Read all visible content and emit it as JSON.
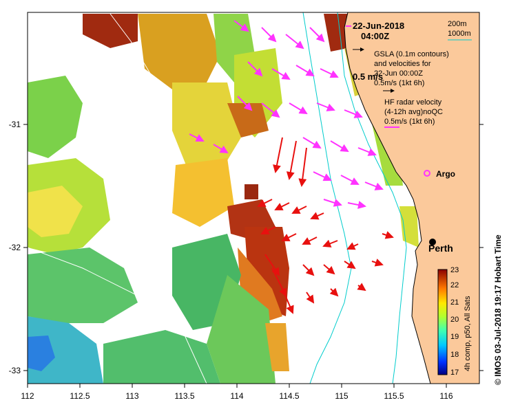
{
  "map": {
    "date_label": "22-Jun-2018",
    "time_label": "04:00Z",
    "x_ticks": [
      "112",
      "112.5",
      "113",
      "113.5",
      "114",
      "114.5",
      "115",
      "115.5",
      "116"
    ],
    "y_ticks": [
      "-31",
      "-32",
      "-33"
    ],
    "legend": {
      "contour_200": "200m",
      "contour_1000": "1000m",
      "gsla_line1": "GSLA (0.1m contours)",
      "gsla_line2": "and velocities for",
      "gsla_line3": "22-Jun 00:00Z",
      "gsla_scale": "0.5m/s (1kt 6h)",
      "big_scale": "0.5 m/s",
      "hf_line1": "HF radar velocity",
      "hf_line2": "(4-12h avg)noQC",
      "hf_scale": "0.5m/s (1kt 6h)"
    },
    "places": {
      "argo": "Argo",
      "perth": "Perth"
    },
    "colorbar": {
      "ticks": [
        "23",
        "22",
        "21",
        "20",
        "19",
        "18",
        "17"
      ],
      "title": "4h comp, p50, All Sats"
    },
    "credit": "© IMOS 03-Jul-2018 19:17 Hobart Time",
    "colors": {
      "land": "#fbc99b",
      "gsla_arrow": "#ff33ff",
      "hf_arrow": "#e8100f",
      "contour_200": "#00cccc",
      "argo": "#ff33ff"
    }
  }
}
